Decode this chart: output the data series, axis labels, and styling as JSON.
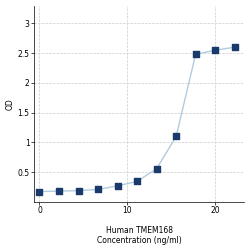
{
  "x_indices": [
    0,
    1,
    2,
    3,
    4,
    5,
    6,
    7,
    8,
    9,
    10
  ],
  "y": [
    0.175,
    0.182,
    0.19,
    0.21,
    0.27,
    0.345,
    0.56,
    1.1,
    2.48,
    2.55,
    2.6
  ],
  "xlabel_line1": "Human TMEM168",
  "xlabel_line2": "Concentration (ng/ml)",
  "ylabel": "OD",
  "xlim": [
    -0.3,
    10.5
  ],
  "ylim": [
    0.0,
    3.3
  ],
  "yticks": [
    0.5,
    1.0,
    1.5,
    2.0,
    2.5,
    3.0
  ],
  "ytick_labels": [
    "0.5",
    "1",
    "1.5",
    "2",
    "2.5",
    "3"
  ],
  "xtick_positions": [
    0,
    4.5,
    9
  ],
  "xtick_labels": [
    "0",
    "10",
    "20"
  ],
  "line_color": "#b0cce0",
  "marker_color": "#1a3a6b",
  "marker_size": 16,
  "line_width": 1.0,
  "grid_color": "#cccccc",
  "bg_color": "#ffffff",
  "axis_fontsize": 5.5,
  "tick_fontsize": 5.5
}
